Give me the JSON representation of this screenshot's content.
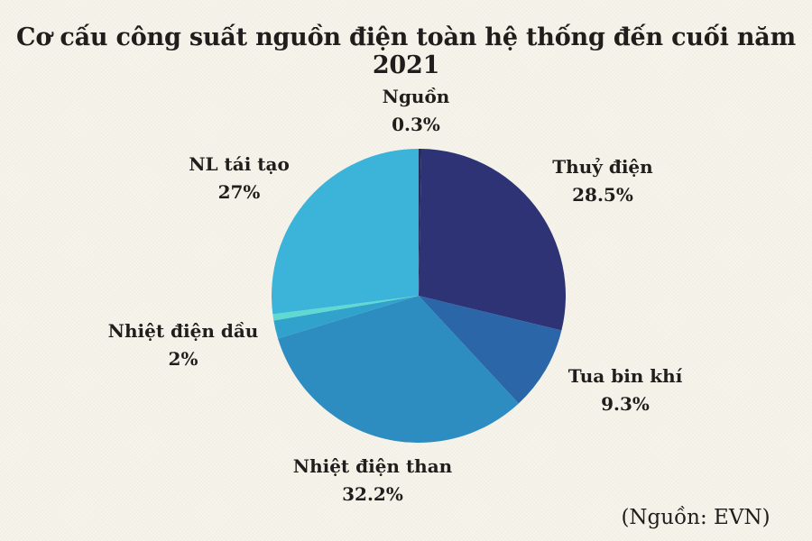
{
  "title": "Cơ cấu công suất nguồn điện toàn hệ thống đến cuối năm 2021",
  "source_note": "(Nguồn: EVN)",
  "colors": {
    "background": "#f7f4ec",
    "text": "#211d1c"
  },
  "chart_data": {
    "type": "pie",
    "title": "Cơ cấu công suất nguồn điện toàn hệ thống đến cuối năm 2021",
    "unit": "%",
    "start_angle_deg": 0,
    "direction": "clockwise",
    "legend_position": "outside-labels",
    "slices": [
      {
        "label": "Nguồn",
        "value": 0.3,
        "value_label": "0.3%",
        "color": "#232e5c"
      },
      {
        "label": "Thuỷ điện",
        "value": 28.5,
        "value_label": "28.5%",
        "color": "#2d3374"
      },
      {
        "label": "Tua bin khí",
        "value": 9.3,
        "value_label": "9.3%",
        "color": "#2a66a8"
      },
      {
        "label": "Nhiệt điện than",
        "value": 32.2,
        "value_label": "32.2%",
        "color": "#2d8cc0"
      },
      {
        "label": "Nhiệt điện dầu",
        "value": 2,
        "value_label": "2%",
        "color": "#31a2cb"
      },
      {
        "label": "",
        "value": 0.7,
        "value_label": "",
        "color": "#5fd9d2"
      },
      {
        "label": "NL tái tạo",
        "value": 27,
        "value_label": "27%",
        "color": "#3cb4da"
      }
    ]
  }
}
